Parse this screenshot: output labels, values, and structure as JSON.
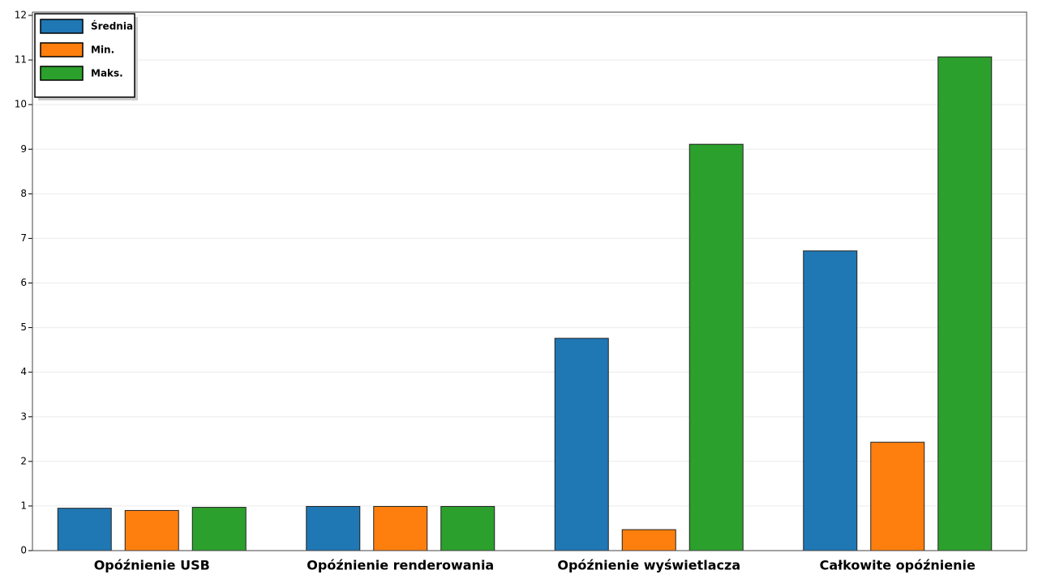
{
  "chart_data": {
    "type": "bar",
    "categories": [
      "Opóźnienie USB",
      "Opóźnienie renderowania",
      "Opóźnienie wyświetlacza",
      "Całkowite opóźnienie"
    ],
    "series": [
      {
        "name": "Średnia",
        "color": "#1f77b4",
        "values": [
          0.95,
          0.99,
          4.76,
          6.72
        ]
      },
      {
        "name": "Min.",
        "color": "#ff7f0e",
        "values": [
          0.9,
          0.99,
          0.47,
          2.43
        ]
      },
      {
        "name": "Maks.",
        "color": "#2ca02c",
        "values": [
          0.97,
          0.99,
          9.11,
          11.07
        ]
      }
    ],
    "ylim": [
      0,
      12
    ],
    "yticks": [
      0,
      1,
      2,
      3,
      4,
      5,
      6,
      7,
      8,
      9,
      10,
      11,
      12
    ],
    "grid": true,
    "legend": "upper-left"
  }
}
